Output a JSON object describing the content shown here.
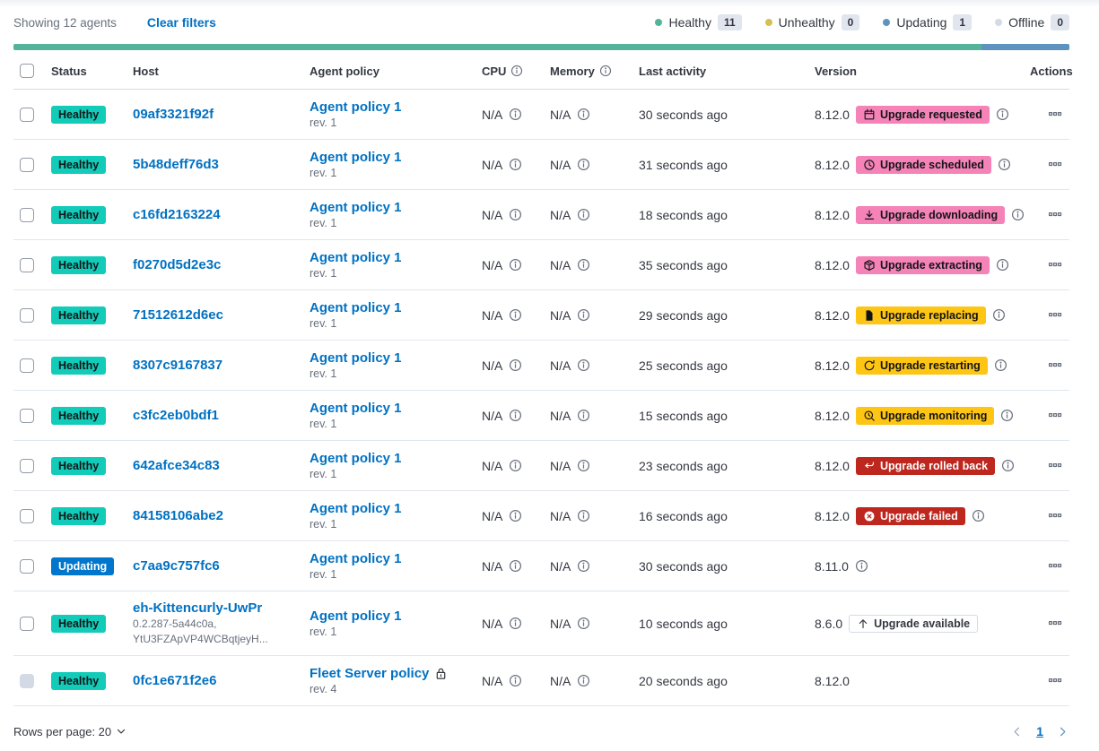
{
  "toolbar": {
    "showing": "Showing 12 agents",
    "clear_filters": "Clear filters"
  },
  "legend": [
    {
      "label": "Healthy",
      "count": "11",
      "color": "#54B399"
    },
    {
      "label": "Unhealthy",
      "count": "0",
      "color": "#D6BF57"
    },
    {
      "label": "Updating",
      "count": "1",
      "color": "#6092C0"
    },
    {
      "label": "Offline",
      "count": "0",
      "color": "#D3DAE6"
    }
  ],
  "health_bar": [
    {
      "status": "healthy",
      "color": "#54B399",
      "value": 11
    },
    {
      "status": "updating",
      "color": "#6092C0",
      "value": 1
    }
  ],
  "badge_colors": {
    "success": {
      "bg": "#12CBB8",
      "text": "#111417"
    },
    "primary": {
      "bg": "#0077CC",
      "text": "#FFFFFF"
    },
    "accent": {
      "bg": "#F583B7",
      "text": "#111417"
    },
    "warning": {
      "bg": "#FEC514",
      "text": "#111417"
    },
    "danger": {
      "bg": "#BD271E",
      "text": "#FFFFFF"
    },
    "hollow": {
      "bg": "#FFFFFF",
      "text": "#343741"
    }
  },
  "table": {
    "columns": [
      {
        "label": "Status"
      },
      {
        "label": "Host"
      },
      {
        "label": "Agent policy"
      },
      {
        "label": "CPU",
        "info": true
      },
      {
        "label": "Memory",
        "info": true
      },
      {
        "label": "Last activity"
      },
      {
        "label": "Version"
      },
      {
        "label": "Actions",
        "align": "right"
      }
    ],
    "rows": [
      {
        "status": {
          "label": "Healthy",
          "type": "success"
        },
        "host": "09af3321f92f",
        "policy": "Agent policy 1",
        "rev": "rev. 1",
        "cpu": "N/A",
        "memory": "N/A",
        "last_activity": "30 seconds ago",
        "version": "8.12.0",
        "upgrade": {
          "label": "Upgrade requested",
          "type": "accent",
          "icon": "calendar"
        },
        "version_info": true
      },
      {
        "status": {
          "label": "Healthy",
          "type": "success"
        },
        "host": "5b48deff76d3",
        "policy": "Agent policy 1",
        "rev": "rev. 1",
        "cpu": "N/A",
        "memory": "N/A",
        "last_activity": "31 seconds ago",
        "version": "8.12.0",
        "upgrade": {
          "label": "Upgrade scheduled",
          "type": "accent",
          "icon": "clock"
        },
        "version_info": true
      },
      {
        "status": {
          "label": "Healthy",
          "type": "success"
        },
        "host": "c16fd2163224",
        "policy": "Agent policy 1",
        "rev": "rev. 1",
        "cpu": "N/A",
        "memory": "N/A",
        "last_activity": "18 seconds ago",
        "version": "8.12.0",
        "upgrade": {
          "label": "Upgrade downloading",
          "type": "accent",
          "icon": "download"
        },
        "version_info": true
      },
      {
        "status": {
          "label": "Healthy",
          "type": "success"
        },
        "host": "f0270d5d2e3c",
        "policy": "Agent policy 1",
        "rev": "rev. 1",
        "cpu": "N/A",
        "memory": "N/A",
        "last_activity": "35 seconds ago",
        "version": "8.12.0",
        "upgrade": {
          "label": "Upgrade extracting",
          "type": "accent",
          "icon": "package"
        },
        "version_info": true
      },
      {
        "status": {
          "label": "Healthy",
          "type": "success"
        },
        "host": "71512612d6ec",
        "policy": "Agent policy 1",
        "rev": "rev. 1",
        "cpu": "N/A",
        "memory": "N/A",
        "last_activity": "29 seconds ago",
        "version": "8.12.0",
        "upgrade": {
          "label": "Upgrade replacing",
          "type": "warning",
          "icon": "document"
        },
        "version_info": true
      },
      {
        "status": {
          "label": "Healthy",
          "type": "success"
        },
        "host": "8307c9167837",
        "policy": "Agent policy 1",
        "rev": "rev. 1",
        "cpu": "N/A",
        "memory": "N/A",
        "last_activity": "25 seconds ago",
        "version": "8.12.0",
        "upgrade": {
          "label": "Upgrade restarting",
          "type": "warning",
          "icon": "refresh"
        },
        "version_info": true
      },
      {
        "status": {
          "label": "Healthy",
          "type": "success"
        },
        "host": "c3fc2eb0bdf1",
        "policy": "Agent policy 1",
        "rev": "rev. 1",
        "cpu": "N/A",
        "memory": "N/A",
        "last_activity": "15 seconds ago",
        "version": "8.12.0",
        "upgrade": {
          "label": "Upgrade monitoring",
          "type": "warning",
          "icon": "inspect"
        },
        "version_info": true
      },
      {
        "status": {
          "label": "Healthy",
          "type": "success"
        },
        "host": "642afce34c83",
        "policy": "Agent policy 1",
        "rev": "rev. 1",
        "cpu": "N/A",
        "memory": "N/A",
        "last_activity": "23 seconds ago",
        "version": "8.12.0",
        "upgrade": {
          "label": "Upgrade rolled back",
          "type": "danger",
          "icon": "return"
        },
        "version_info": true
      },
      {
        "status": {
          "label": "Healthy",
          "type": "success"
        },
        "host": "84158106abe2",
        "policy": "Agent policy 1",
        "rev": "rev. 1",
        "cpu": "N/A",
        "memory": "N/A",
        "last_activity": "16 seconds ago",
        "version": "8.12.0",
        "upgrade": {
          "label": "Upgrade failed",
          "type": "danger",
          "icon": "error"
        },
        "version_info": true
      },
      {
        "status": {
          "label": "Updating",
          "type": "primary"
        },
        "host": "c7aa9c757fc6",
        "policy": "Agent policy 1",
        "rev": "rev. 1",
        "cpu": "N/A",
        "memory": "N/A",
        "last_activity": "30 seconds ago",
        "version": "8.11.0",
        "upgrade": null,
        "version_info": true
      },
      {
        "status": {
          "label": "Healthy",
          "type": "success"
        },
        "host": "eh-Kittencurly-UwPr",
        "host_sublines": [
          "0.2.287-5a44c0a,",
          "YtU3FZApVP4WCBqtjeyH..."
        ],
        "policy": "Agent policy 1",
        "rev": "rev. 1",
        "cpu": "N/A",
        "memory": "N/A",
        "last_activity": "10 seconds ago",
        "version": "8.6.0",
        "upgrade": {
          "label": "Upgrade available",
          "type": "hollow",
          "icon": "arrow-up"
        },
        "version_info": false,
        "tall": true
      },
      {
        "status": {
          "label": "Healthy",
          "type": "success"
        },
        "host": "0fc1e671f2e6",
        "policy": "Fleet Server policy",
        "policy_locked": true,
        "rev": "rev. 4",
        "cpu": "N/A",
        "memory": "N/A",
        "last_activity": "20 seconds ago",
        "version": "8.12.0",
        "upgrade": null,
        "version_info": false,
        "checkbox_disabled": true
      }
    ]
  },
  "footer": {
    "rows_per_page": "Rows per page: 20",
    "page": "1"
  }
}
